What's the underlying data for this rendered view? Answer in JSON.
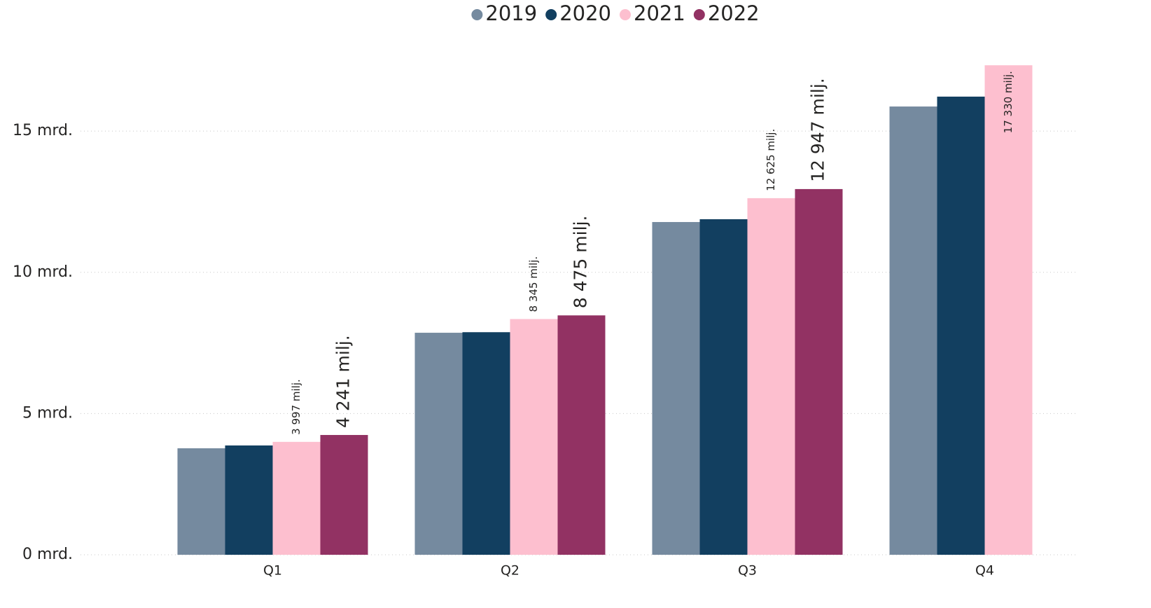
{
  "chart_data": {
    "type": "bar",
    "categories": [
      "Q1",
      "Q2",
      "Q3",
      "Q4"
    ],
    "series": [
      {
        "name": "2019",
        "color": "#758a9f",
        "values": [
          3.77,
          7.86,
          11.78,
          15.87
        ]
      },
      {
        "name": "2020",
        "color": "#123f60",
        "values": [
          3.87,
          7.88,
          11.88,
          16.22
        ]
      },
      {
        "name": "2021",
        "color": "#fdbfcf",
        "values": [
          3.997,
          8.345,
          12.625,
          17.33
        ],
        "value_labels": [
          "3 997 milj.",
          "8 345 milj.",
          "12 625 milj.",
          "17 330 milj."
        ]
      },
      {
        "name": "2022",
        "color": "#923263",
        "values": [
          4.241,
          8.475,
          12.947,
          null
        ],
        "value_labels": [
          "4 241 milj.",
          "8 475 milj.",
          "12 947 milj.",
          null
        ]
      }
    ],
    "ylim": [
      0,
      18.5
    ],
    "yticks": [
      {
        "value": 0,
        "label": "0 mrd."
      },
      {
        "value": 5,
        "label": "5 mrd."
      },
      {
        "value": 10,
        "label": "10 mrd."
      },
      {
        "value": 15,
        "label": "15 mrd."
      }
    ],
    "grid": true,
    "legend": "top"
  }
}
